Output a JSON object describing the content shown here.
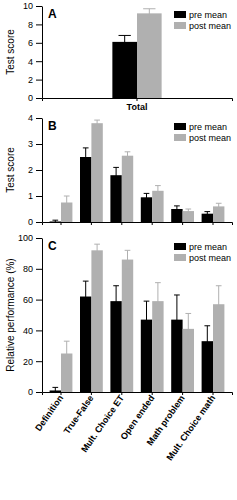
{
  "chart_data": [
    {
      "type": "bar",
      "title": "A",
      "y_label": "Test score",
      "categories": [
        "Total"
      ],
      "series": [
        {
          "name": "pre mean",
          "color": "#000000",
          "values": [
            6.1
          ],
          "errors": [
            0.7
          ]
        },
        {
          "name": "post mean",
          "color": "#b0b0b0",
          "values": [
            9.2
          ],
          "errors": [
            0.5
          ]
        }
      ],
      "ylim": [
        0,
        10
      ],
      "yticks": [
        0,
        2,
        4,
        6,
        8,
        10
      ],
      "legend": "top-right"
    },
    {
      "type": "bar",
      "title": "B",
      "y_label": "Test score",
      "categories": [
        null,
        null,
        null,
        null,
        null,
        null
      ],
      "series": [
        {
          "name": "pre mean",
          "color": "#000000",
          "values": [
            0.02,
            2.5,
            1.8,
            0.95,
            0.5,
            0.32
          ],
          "errors": [
            0.05,
            0.35,
            0.3,
            0.15,
            0.12,
            0.08
          ]
        },
        {
          "name": "post mean",
          "color": "#b0b0b0",
          "values": [
            0.75,
            3.8,
            2.55,
            1.2,
            0.42,
            0.6
          ],
          "errors": [
            0.25,
            0.12,
            0.15,
            0.2,
            0.08,
            0.12
          ]
        }
      ],
      "ylim": [
        0,
        4
      ],
      "yticks": [
        0,
        1,
        2,
        3,
        4
      ],
      "legend": "top-right"
    },
    {
      "type": "bar",
      "title": "C",
      "y_label": "Relative performance (%)",
      "categories": [
        "Definition",
        "True-False",
        "Mult. Choice ET",
        "Open ended",
        "Math problem",
        "Mult. Choice math"
      ],
      "series": [
        {
          "name": "pre mean",
          "color": "#000000",
          "values": [
            1,
            62,
            59,
            47,
            47,
            33
          ],
          "errors": [
            2,
            10,
            10,
            12,
            16,
            10
          ]
        },
        {
          "name": "post mean",
          "color": "#b0b0b0",
          "values": [
            25,
            92,
            86,
            59,
            41,
            57
          ],
          "errors": [
            8,
            4,
            6,
            12,
            10,
            12
          ]
        }
      ],
      "ylim": [
        0,
        100
      ],
      "yticks": [
        0,
        20,
        40,
        60,
        80,
        100
      ],
      "legend": "top-right"
    }
  ]
}
